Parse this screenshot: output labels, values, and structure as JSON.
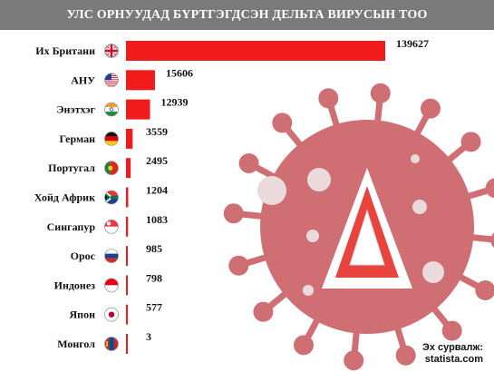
{
  "title": "УЛС ОРНУУДАД БҮРТГЭГДСЭН ДЕЛЬТА ВИРУСЫН ТОО",
  "source_label": "Эх сурвалж:",
  "source_value": "statista.com",
  "colors": {
    "bar": "#f11b1b",
    "title_bg": "#7a7a7a",
    "virus": "#cf6f74",
    "virus_light": "#eadadb"
  },
  "icon_emblem": "delta-letter-icon",
  "chart_data": {
    "type": "bar",
    "orientation": "horizontal",
    "title": "УЛС ОРНУУДАД БҮРТГЭГДСЭН ДЕЛЬТА ВИРУСЫН ТОО",
    "categories": [
      "Их Британи",
      "АНУ",
      "Энэтхэг",
      "Герман",
      "Португал",
      "Хойд Африк",
      "Сингапур",
      "Орос",
      "Индонез",
      "Япон",
      "Монгол"
    ],
    "values": [
      139627,
      15606,
      12939,
      3559,
      2495,
      1204,
      1083,
      985,
      798,
      577,
      3
    ],
    "data_labels": [
      "139627",
      "15606",
      "12939",
      "3559",
      "2495",
      "1204",
      "1083",
      "985",
      "798",
      "577",
      "3"
    ],
    "flag_icons": [
      "uk-flag-icon",
      "usa-flag-icon",
      "india-flag-icon",
      "germany-flag-icon",
      "portugal-flag-icon",
      "south-africa-flag-icon",
      "singapore-flag-icon",
      "russia-flag-icon",
      "indonesia-flag-icon",
      "japan-flag-icon",
      "mongolia-flag-icon"
    ],
    "xlabel": "",
    "ylabel": ""
  }
}
